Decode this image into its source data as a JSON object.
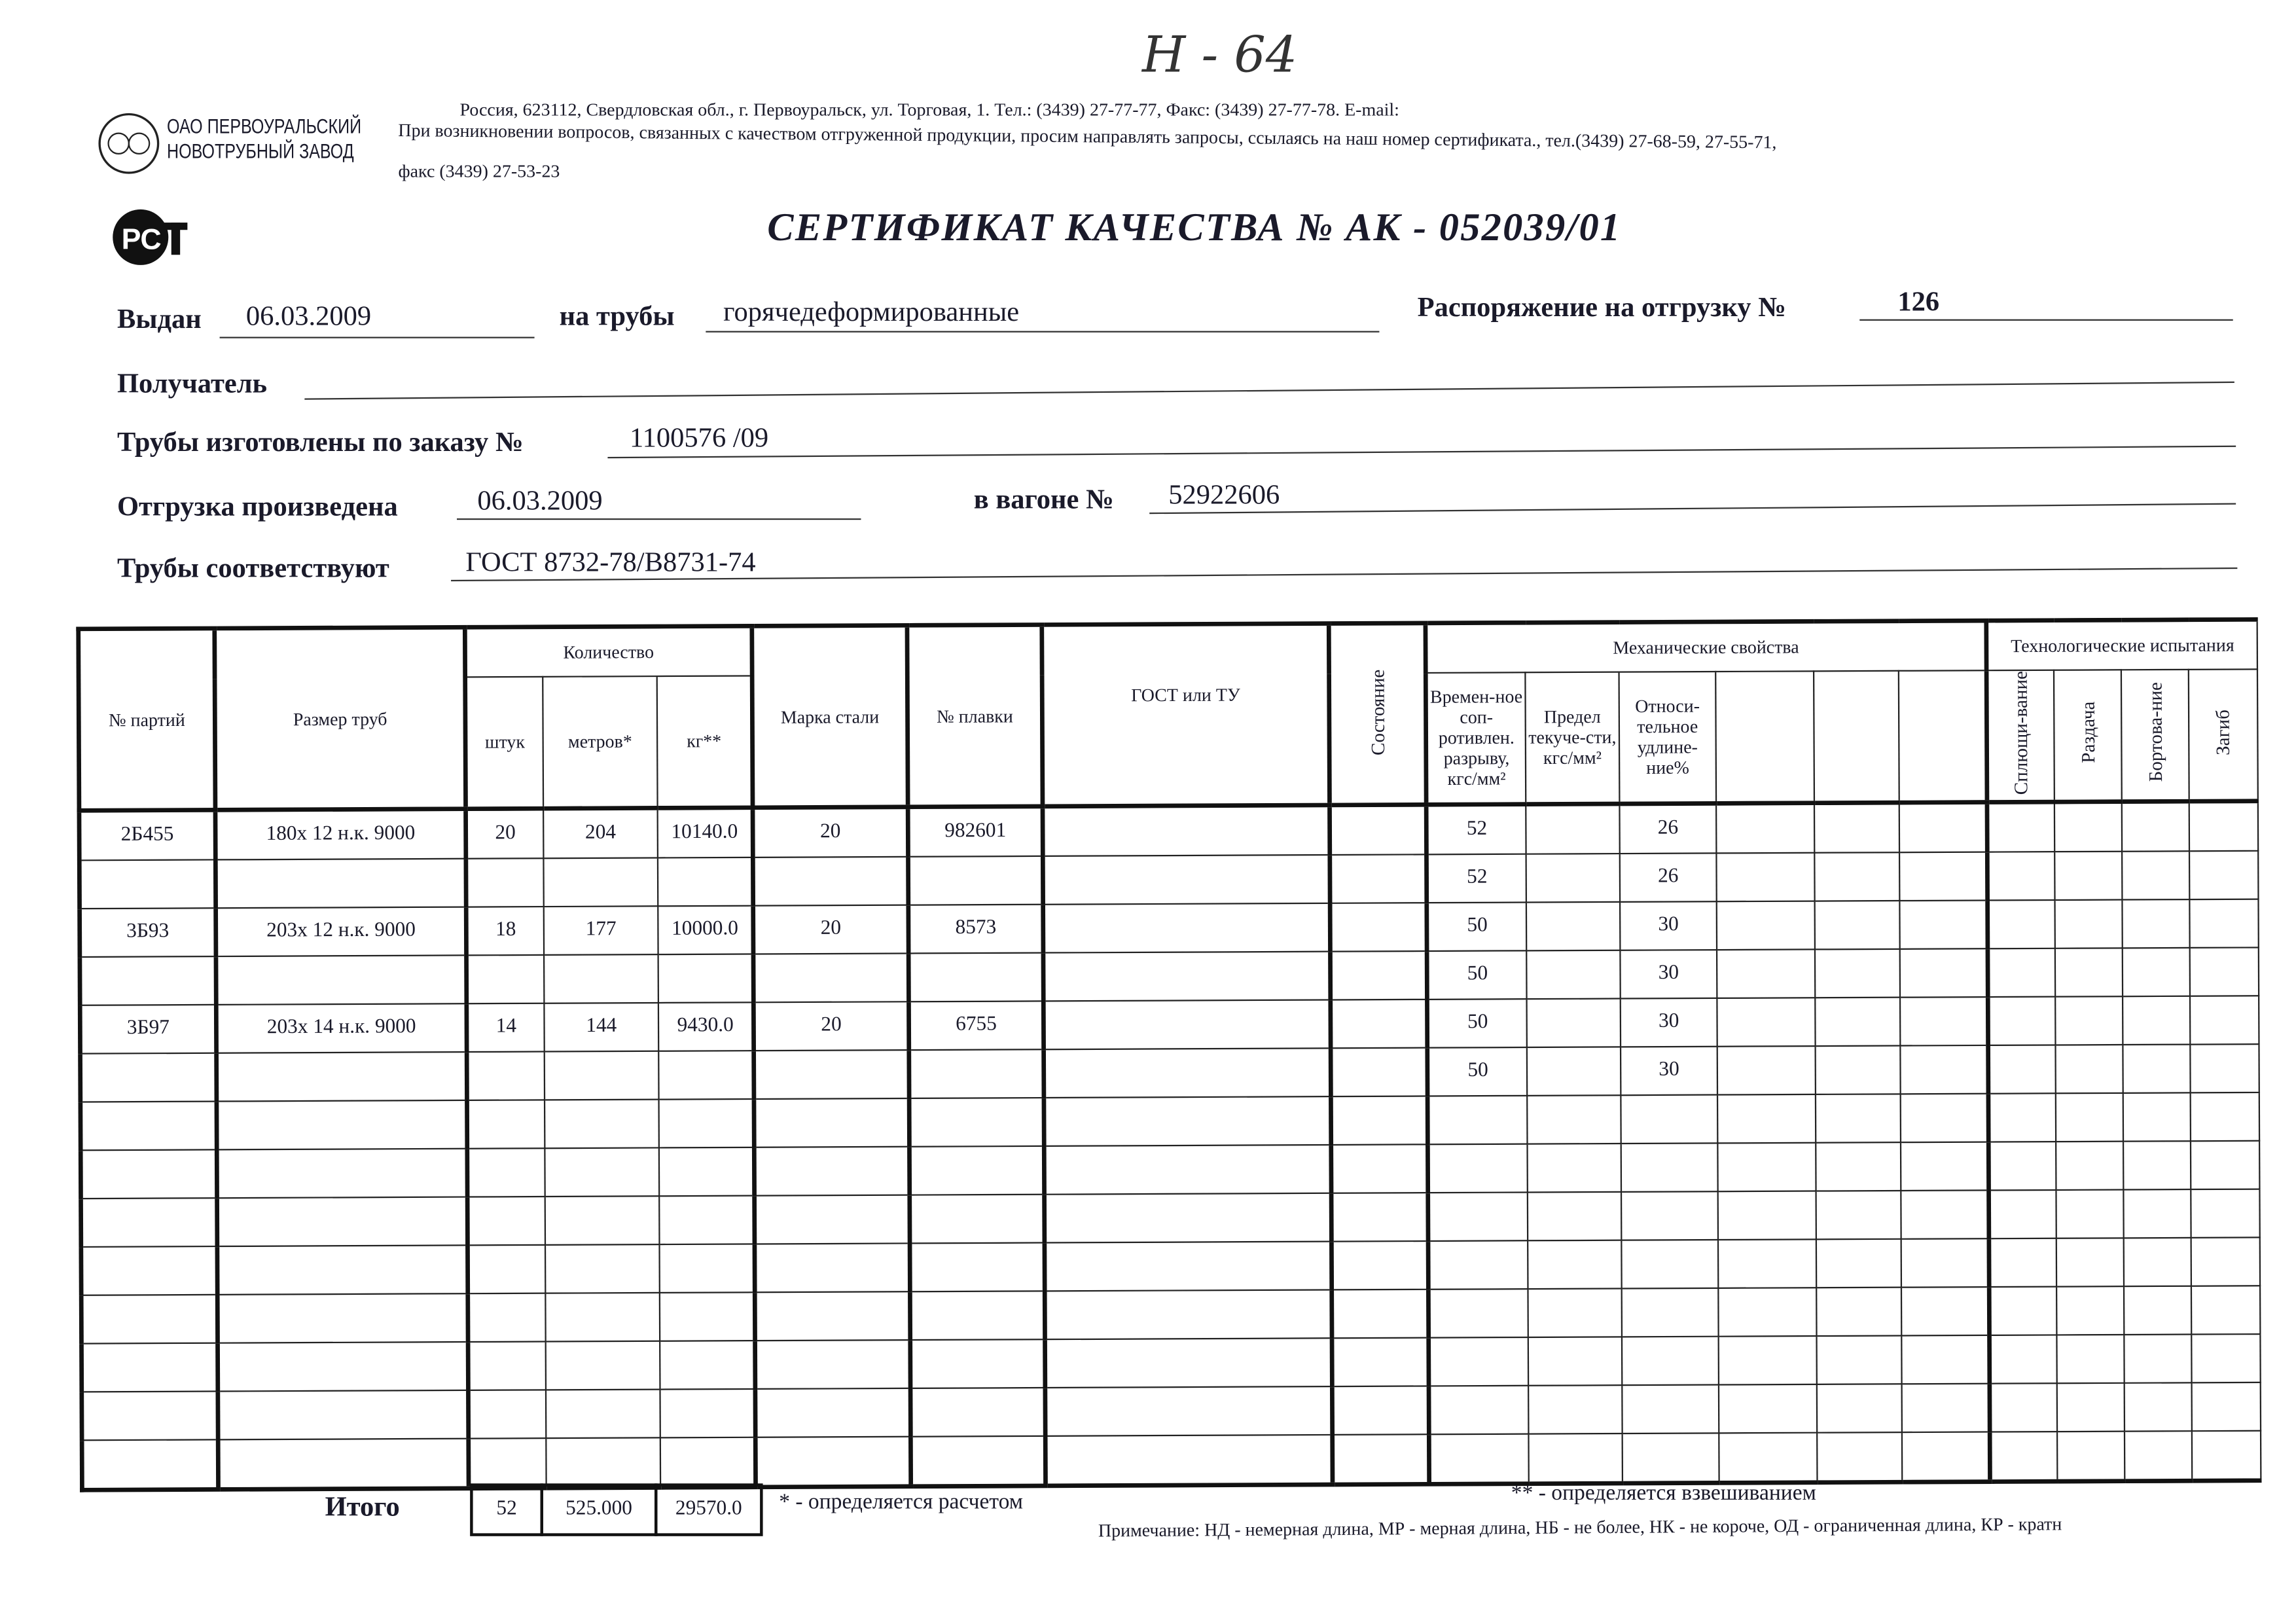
{
  "handwritten_mark": "Н - 64",
  "company": {
    "name_line1": "ОАО ПЕРВОУРАЛЬСКИЙ",
    "name_line2": "НОВОТРУБНЫЙ ЗАВОД",
    "address": "Россия, 623112, Свердловская обл., г. Первоуральск, ул. Торговая, 1. Тел.: (3439) 27-77-77, Факс: (3439) 27-77-78.  E-mail:",
    "questions": "При возникновении вопросов, связанных с качеством отгруженной продукции, просим направлять запросы, ссылаясь на наш номер сертификата., тел.(3439) 27-68-59, 27-55-71,",
    "fax": "факс (3439) 27-53-23"
  },
  "rst_logo": "РСТ",
  "title": "СЕРТИФИКАТ КАЧЕСТВА   №  АК -  052039/01",
  "fields": {
    "issued_label": "Выдан",
    "issued": "06.03.2009",
    "pipes_label": "на трубы",
    "pipes": "горячедеформированные",
    "order_label": "Распоряжение на отгрузку №",
    "order": "126",
    "recipient_label": "Получатель",
    "recipient": "",
    "made_label": "Трубы изготовлены по заказу №",
    "made": "1100576   /09",
    "shipped_label": "Отгрузка произведена",
    "shipped": "06.03.2009",
    "wagon_label": "в вагоне №",
    "wagon": "52922606",
    "conform_label": "Трубы соответствуют",
    "conform": "ГОСТ 8732-78/В8731-74"
  },
  "table": {
    "headers": {
      "batch": "№ партий",
      "size": "Размер труб",
      "qty": "Количество",
      "pcs": "штук",
      "meters": "метров*",
      "kg": "кг**",
      "steel": "Марка стали",
      "heat": "№ плавки",
      "gost": "ГОСТ или ТУ",
      "state": "Состояние",
      "mech": "Механические свойства",
      "tensile": "Времен-ное соп-ротивлен. разрыву, кгс/мм²",
      "yield": "Предел текуче-сти, кгс/мм²",
      "elong": "Относи-тельное удлине-ние%",
      "tech": "Технологические испытания",
      "flat": "Сплющи-вание",
      "expand": "Раздача",
      "flange": "Бортова-ние",
      "bend": "Загиб"
    },
    "rows": [
      {
        "batch": "2Б455",
        "size": "180х 12 н.к. 9000",
        "pcs": "20",
        "meters": "204",
        "kg": "10140.0",
        "steel": "20",
        "heat": "982601",
        "tensile": "52",
        "elong": "26"
      },
      {
        "batch": "",
        "size": "",
        "pcs": "",
        "meters": "",
        "kg": "",
        "steel": "",
        "heat": "",
        "tensile": "52",
        "elong": "26"
      },
      {
        "batch": "3Б93",
        "size": "203х 12 н.к. 9000",
        "pcs": "18",
        "meters": "177",
        "kg": "10000.0",
        "steel": "20",
        "heat": "8573",
        "tensile": "50",
        "elong": "30"
      },
      {
        "batch": "",
        "size": "",
        "pcs": "",
        "meters": "",
        "kg": "",
        "steel": "",
        "heat": "",
        "tensile": "50",
        "elong": "30"
      },
      {
        "batch": "3Б97",
        "size": "203х 14 н.к. 9000",
        "pcs": "14",
        "meters": "144",
        "kg": "9430.0",
        "steel": "20",
        "heat": "6755",
        "tensile": "50",
        "elong": "30"
      },
      {
        "batch": "",
        "size": "",
        "pcs": "",
        "meters": "",
        "kg": "",
        "steel": "",
        "heat": "",
        "tensile": "50",
        "elong": "30"
      }
    ],
    "total_label": "Итого",
    "total_pcs": "52",
    "total_meters": "525.000",
    "total_kg": "29570.0"
  },
  "notes": {
    "calc": "* - определяется расчетом",
    "weigh": "** - определяется взвешиванием",
    "remark": "Примечание: НД - немерная длина, МР - мерная длина, НБ - не более, НК - не короче, ОД - ограниченная длина, КР - кратн"
  }
}
